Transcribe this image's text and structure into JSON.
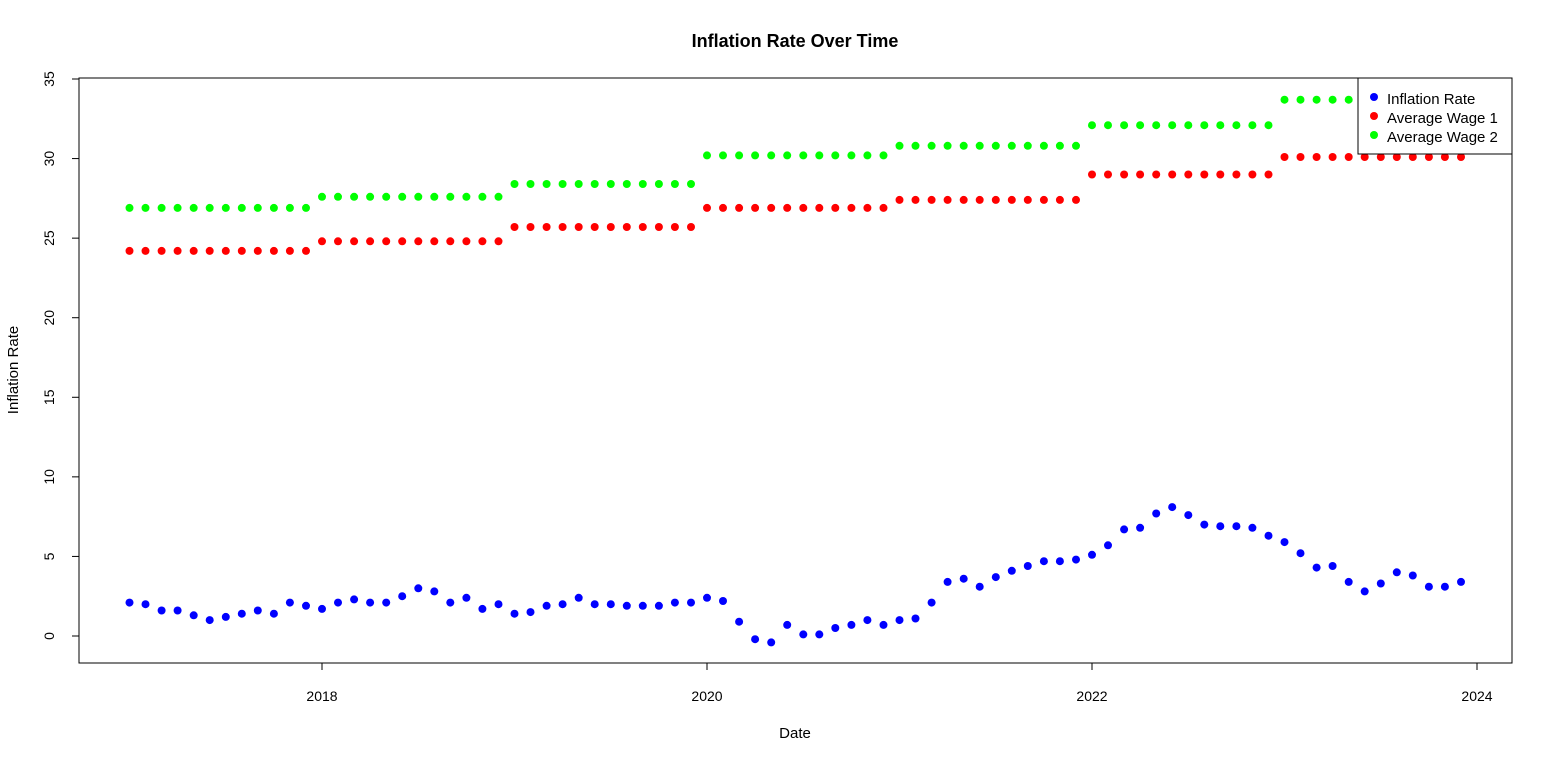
{
  "chart_data": {
    "type": "scatter",
    "title": "Inflation Rate Over Time",
    "xlabel": "Date",
    "ylabel": "Inflation Rate",
    "x_tick_labels": [
      "2018",
      "2020",
      "2022",
      "2024"
    ],
    "y_tick_labels": [
      "0",
      "5",
      "10",
      "15",
      "20",
      "25",
      "30",
      "35"
    ],
    "xlim": [
      "2016-11-01",
      "2024-03-01"
    ],
    "ylim": [
      -1.8,
      35
    ],
    "grid": false,
    "legend_position": "top-right",
    "x": [
      "2017-01",
      "2017-02",
      "2017-03",
      "2017-04",
      "2017-05",
      "2017-06",
      "2017-07",
      "2017-08",
      "2017-09",
      "2017-10",
      "2017-11",
      "2017-12",
      "2018-01",
      "2018-02",
      "2018-03",
      "2018-04",
      "2018-05",
      "2018-06",
      "2018-07",
      "2018-08",
      "2018-09",
      "2018-10",
      "2018-11",
      "2018-12",
      "2019-01",
      "2019-02",
      "2019-03",
      "2019-04",
      "2019-05",
      "2019-06",
      "2019-07",
      "2019-08",
      "2019-09",
      "2019-10",
      "2019-11",
      "2019-12",
      "2020-01",
      "2020-02",
      "2020-03",
      "2020-04",
      "2020-05",
      "2020-06",
      "2020-07",
      "2020-08",
      "2020-09",
      "2020-10",
      "2020-11",
      "2020-12",
      "2021-01",
      "2021-02",
      "2021-03",
      "2021-04",
      "2021-05",
      "2021-06",
      "2021-07",
      "2021-08",
      "2021-09",
      "2021-10",
      "2021-11",
      "2021-12",
      "2022-01",
      "2022-02",
      "2022-03",
      "2022-04",
      "2022-05",
      "2022-06",
      "2022-07",
      "2022-08",
      "2022-09",
      "2022-10",
      "2022-11",
      "2022-12",
      "2023-01",
      "2023-02",
      "2023-03",
      "2023-04",
      "2023-05",
      "2023-06",
      "2023-07",
      "2023-08",
      "2023-09",
      "2023-10",
      "2023-11",
      "2023-12"
    ],
    "series": [
      {
        "name": "Inflation Rate",
        "color": "#0000FF",
        "values": [
          2.1,
          2.0,
          1.6,
          1.6,
          1.3,
          1.0,
          1.2,
          1.4,
          1.6,
          1.4,
          2.1,
          1.9,
          1.7,
          2.1,
          2.3,
          2.1,
          2.1,
          2.5,
          3.0,
          2.8,
          2.1,
          2.4,
          1.7,
          2.0,
          1.4,
          1.5,
          1.9,
          2.0,
          2.4,
          2.0,
          2.0,
          1.9,
          1.9,
          1.9,
          2.1,
          2.1,
          2.4,
          2.2,
          0.9,
          -0.2,
          -0.4,
          0.7,
          0.1,
          0.1,
          0.5,
          0.7,
          1.0,
          0.7,
          1.0,
          1.1,
          2.1,
          3.4,
          3.6,
          3.1,
          3.7,
          4.1,
          4.4,
          4.7,
          4.7,
          4.8,
          5.1,
          5.7,
          6.7,
          6.8,
          7.7,
          8.1,
          7.6,
          7.0,
          6.9,
          6.9,
          6.8,
          6.3,
          5.9,
          5.2,
          4.3,
          4.4,
          3.4,
          2.8,
          3.3,
          4.0,
          3.8,
          3.1,
          3.1,
          3.4
        ]
      },
      {
        "name": "Average Wage 1",
        "color": "#FF0000",
        "values": [
          24.2,
          24.2,
          24.2,
          24.2,
          24.2,
          24.2,
          24.2,
          24.2,
          24.2,
          24.2,
          24.2,
          24.2,
          24.8,
          24.8,
          24.8,
          24.8,
          24.8,
          24.8,
          24.8,
          24.8,
          24.8,
          24.8,
          24.8,
          24.8,
          25.7,
          25.7,
          25.7,
          25.7,
          25.7,
          25.7,
          25.7,
          25.7,
          25.7,
          25.7,
          25.7,
          25.7,
          26.9,
          26.9,
          26.9,
          26.9,
          26.9,
          26.9,
          26.9,
          26.9,
          26.9,
          26.9,
          26.9,
          26.9,
          27.4,
          27.4,
          27.4,
          27.4,
          27.4,
          27.4,
          27.4,
          27.4,
          27.4,
          27.4,
          27.4,
          27.4,
          29.0,
          29.0,
          29.0,
          29.0,
          29.0,
          29.0,
          29.0,
          29.0,
          29.0,
          29.0,
          29.0,
          29.0,
          30.1,
          30.1,
          30.1,
          30.1,
          30.1,
          30.1,
          30.1,
          30.1,
          30.1,
          30.1,
          30.1,
          30.1
        ]
      },
      {
        "name": "Average Wage 2",
        "color": "#00FF00",
        "values": [
          26.9,
          26.9,
          26.9,
          26.9,
          26.9,
          26.9,
          26.9,
          26.9,
          26.9,
          26.9,
          26.9,
          26.9,
          27.6,
          27.6,
          27.6,
          27.6,
          27.6,
          27.6,
          27.6,
          27.6,
          27.6,
          27.6,
          27.6,
          27.6,
          28.4,
          28.4,
          28.4,
          28.4,
          28.4,
          28.4,
          28.4,
          28.4,
          28.4,
          28.4,
          28.4,
          28.4,
          30.2,
          30.2,
          30.2,
          30.2,
          30.2,
          30.2,
          30.2,
          30.2,
          30.2,
          30.2,
          30.2,
          30.2,
          30.8,
          30.8,
          30.8,
          30.8,
          30.8,
          30.8,
          30.8,
          30.8,
          30.8,
          30.8,
          30.8,
          30.8,
          32.1,
          32.1,
          32.1,
          32.1,
          32.1,
          32.1,
          32.1,
          32.1,
          32.1,
          32.1,
          32.1,
          32.1,
          33.7,
          33.7,
          33.7,
          33.7,
          33.7,
          33.7,
          33.7,
          33.7,
          33.7,
          33.7,
          33.7,
          33.7
        ]
      }
    ]
  }
}
